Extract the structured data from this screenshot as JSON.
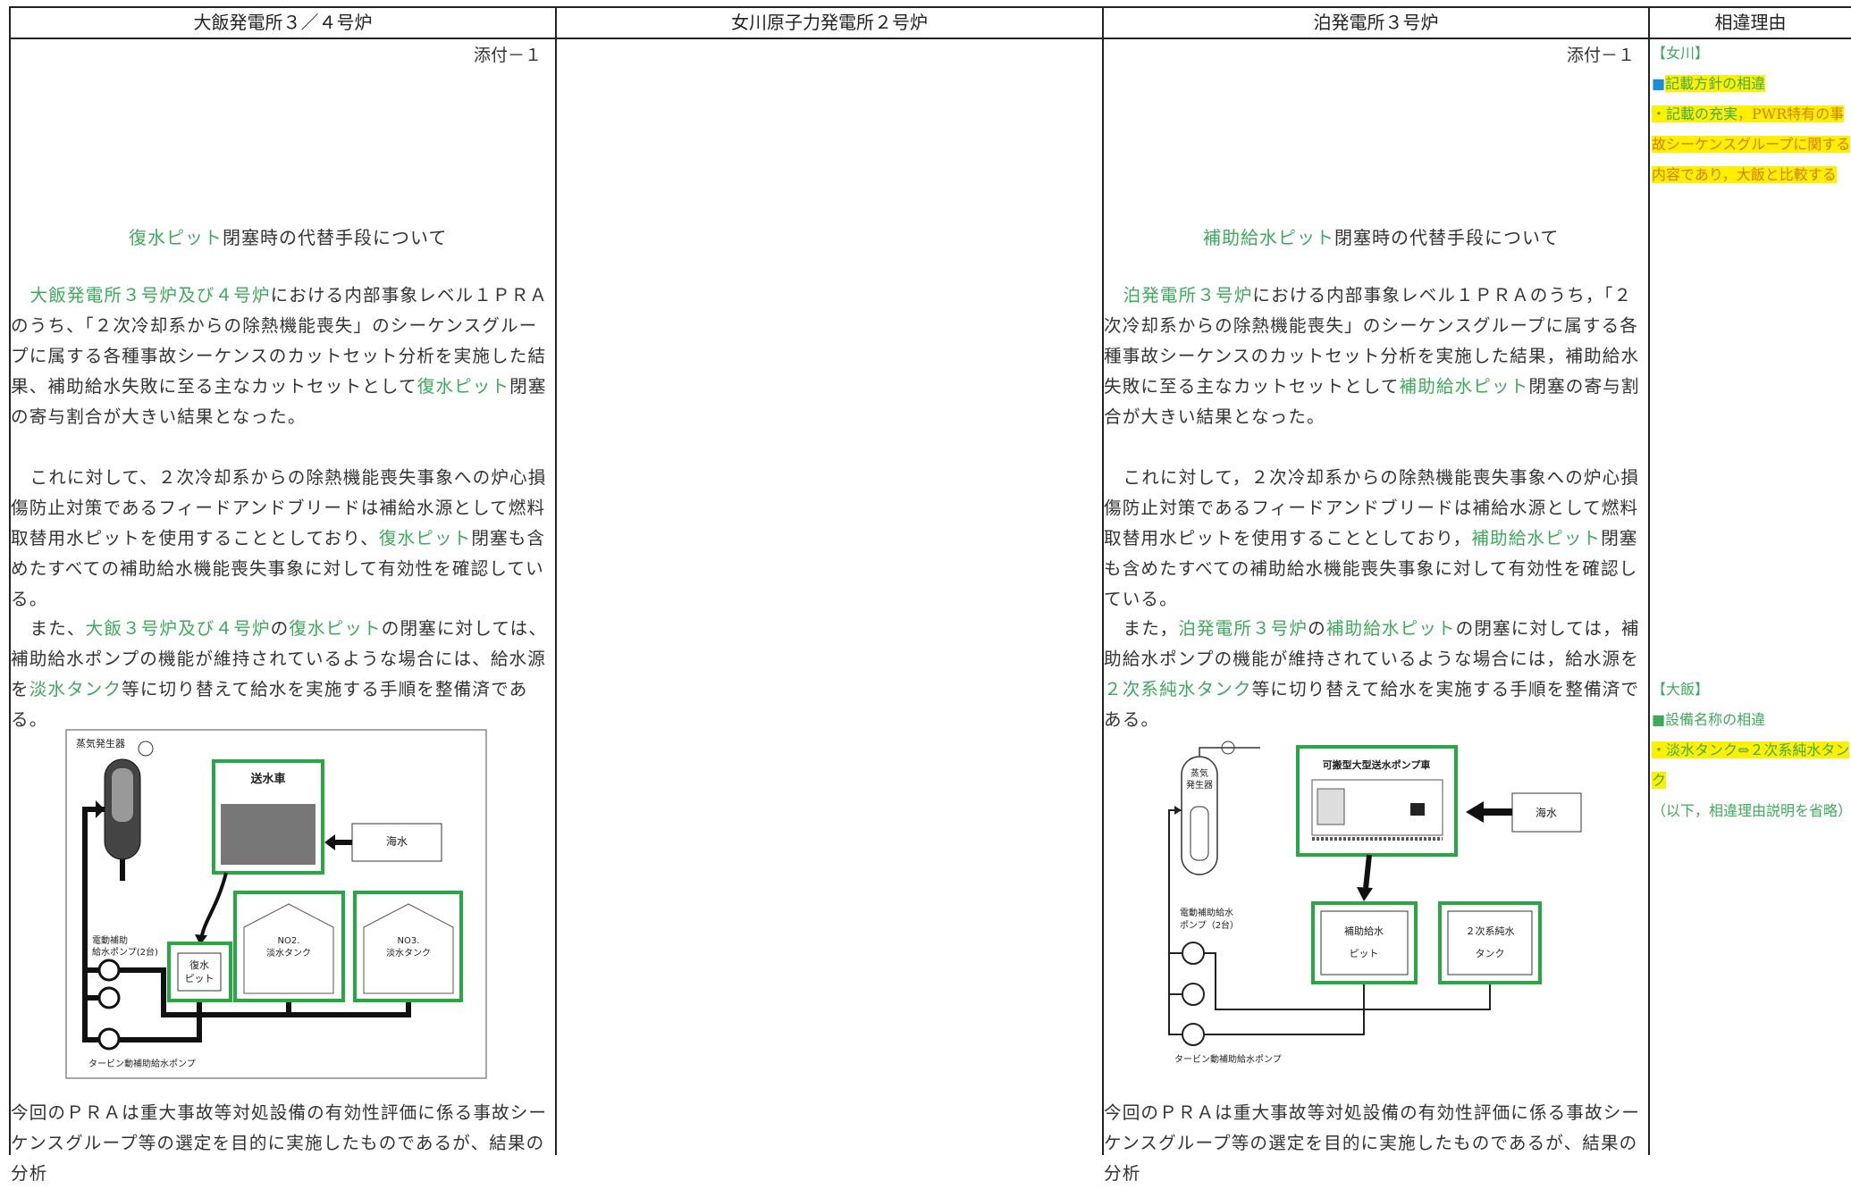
{
  "header": [
    "大飯発電所３／４号炉",
    "女川原子力発電所２号炉",
    "泊発電所３号炉",
    "相違理由"
  ],
  "ohi": {
    "attachment": "添付－１",
    "title": [
      "復水ピット",
      "閉塞時の代替手段について"
    ],
    "paragraphs": [
      [
        "大飯発電所３号炉及び４号炉",
        "における内部事象レベル１ＰＲＡのうち、「２次冷却系からの除熱機能喪失」のシーケンスグループに属する各種事故シーケンスのカットセット分析を実施した結果、補助給水失敗に至る主なカットセットとして",
        "復水ピット",
        "閉塞の寄与割合が大きい結果となった。"
      ],
      [
        "これに対して、２次冷却系からの除熱機能喪失事象への炉心損傷防止対策であるフィードアンドブリードは補給水源として燃料取替用水ピットを使用することとしており、",
        "復水ピット",
        "閉塞も含めたすべての補助給水機能喪失事象に対して有効性を確認している。"
      ],
      [
        "また、",
        "大飯３号炉及び４号炉",
        "の",
        "復水ピット",
        "の閉塞に対しては、補助給水ポンプの機能が維持されているような場合には、給水源を",
        "淡水タンク",
        "等に切り替えて給水を実施する手順を整備済である。"
      ]
    ],
    "diagram": {
      "steam_generator": "蒸気発生器",
      "truck": "送水車",
      "sea": "海水",
      "motor_pump": [
        "電動補助",
        "給水ポンプ(2台)"
      ],
      "pit": [
        "復水",
        "ピット"
      ],
      "tank2": [
        "NO2.",
        "淡水タンク"
      ],
      "tank3": [
        "NO3.",
        "淡水タンク"
      ],
      "turbine_pump": "タービン動補助給水ポンプ"
    },
    "footer": "今回のＰＲＡは重大事故等対処設備の有効性評価に係る事故シーケンスグループ等の選定を目的に実施したものであるが、結果の分析"
  },
  "tomari": {
    "attachment": "添付－１",
    "title": [
      "補助給水ピット",
      "閉塞時の代替手段について"
    ],
    "paragraphs": [
      [
        "泊発電所３号炉",
        "における内部事象レベル１ＰＲＡのうち，「２次冷却系からの除熱機能喪失」のシーケンスグループに属する各種事故シーケンスのカットセット分析を実施した結果，補助給水失敗に至る主なカットセットとして",
        "補助給水ピット",
        "閉塞の寄与割合が大きい結果となった。"
      ],
      [
        "これに対して，２次冷却系からの除熱機能喪失事象への炉心損傷防止対策であるフィードアンドブリードは補給水源として燃料取替用水ピットを使用することとしており，",
        "補助給水ピット",
        "閉塞も含めたすべての補助給水機能喪失事象に対して有効性を確認している。"
      ],
      [
        "また，",
        "泊発電所３号炉",
        "の",
        "補助給水ピット",
        "の閉塞に対しては，補助給水ポンプの機能が維持されているような場合には，給水源を",
        "２次系純水タンク",
        "等に切り替えて給水を実施する手順を整備済である。"
      ]
    ],
    "diagram": {
      "steam_generator": [
        "蒸気",
        "発生器"
      ],
      "truck": "可搬型大型送水ポンプ車",
      "sea": "海水",
      "motor_pump": [
        "電動補助給水",
        "ポンプ（2台）"
      ],
      "pit": [
        "補助給水",
        "ピット"
      ],
      "tank": [
        "２次系純水",
        "タンク"
      ],
      "turbine_pump": "タービン動補助給水ポンプ"
    },
    "footer": "今回のＰＲＡは重大事故等対処設備の有効性評価に係る事故シーケンスグループ等の選定を目的に実施したものであるが、結果の分析"
  },
  "reasons": {
    "onagawa": {
      "tag": "【女川】",
      "heading": [
        "■",
        "記載方針の相違"
      ],
      "body": [
        "・記載の充実",
        "，PWR特有の事故シーケンスグループに関する内容であり，大飯と比較する"
      ]
    },
    "ohi": {
      "tag": "【大飯】",
      "heading": "■設備名称の相違",
      "body": "・淡水タンク⇔２次系純水タンク",
      "note": "（以下，相違理由説明を省略）"
    }
  }
}
